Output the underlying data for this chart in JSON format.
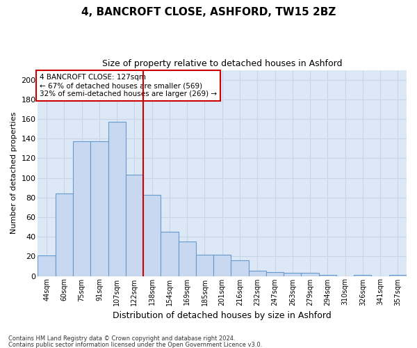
{
  "title1": "4, BANCROFT CLOSE, ASHFORD, TW15 2BZ",
  "title2": "Size of property relative to detached houses in Ashford",
  "xlabel": "Distribution of detached houses by size in Ashford",
  "ylabel": "Number of detached properties",
  "categories": [
    "44sqm",
    "60sqm",
    "75sqm",
    "91sqm",
    "107sqm",
    "122sqm",
    "138sqm",
    "154sqm",
    "169sqm",
    "185sqm",
    "201sqm",
    "216sqm",
    "232sqm",
    "247sqm",
    "263sqm",
    "279sqm",
    "294sqm",
    "310sqm",
    "326sqm",
    "341sqm",
    "357sqm"
  ],
  "values": [
    21,
    84,
    137,
    137,
    157,
    103,
    83,
    45,
    35,
    22,
    22,
    16,
    5,
    4,
    3,
    3,
    1,
    0,
    1,
    0,
    1
  ],
  "bar_color": "#c8d8f0",
  "bar_edge_color": "#6699cc",
  "vline_x": 5.5,
  "vline_color": "#cc0000",
  "annotation_text": "4 BANCROFT CLOSE: 127sqm\n← 67% of detached houses are smaller (569)\n32% of semi-detached houses are larger (269) →",
  "annotation_box_color": "#ffffff",
  "annotation_box_edge": "#cc0000",
  "ylim": [
    0,
    210
  ],
  "yticks": [
    0,
    20,
    40,
    60,
    80,
    100,
    120,
    140,
    160,
    180,
    200
  ],
  "grid_color": "#c8d4e8",
  "bg_color": "#dce8f5",
  "fig_color": "#ffffff",
  "footer1": "Contains HM Land Registry data © Crown copyright and database right 2024.",
  "footer2": "Contains public sector information licensed under the Open Government Licence v3.0.",
  "title1_fontsize": 11,
  "title2_fontsize": 9,
  "xlabel_fontsize": 9,
  "ylabel_fontsize": 8,
  "tick_fontsize": 7,
  "footer_fontsize": 6,
  "ann_fontsize": 7.5
}
